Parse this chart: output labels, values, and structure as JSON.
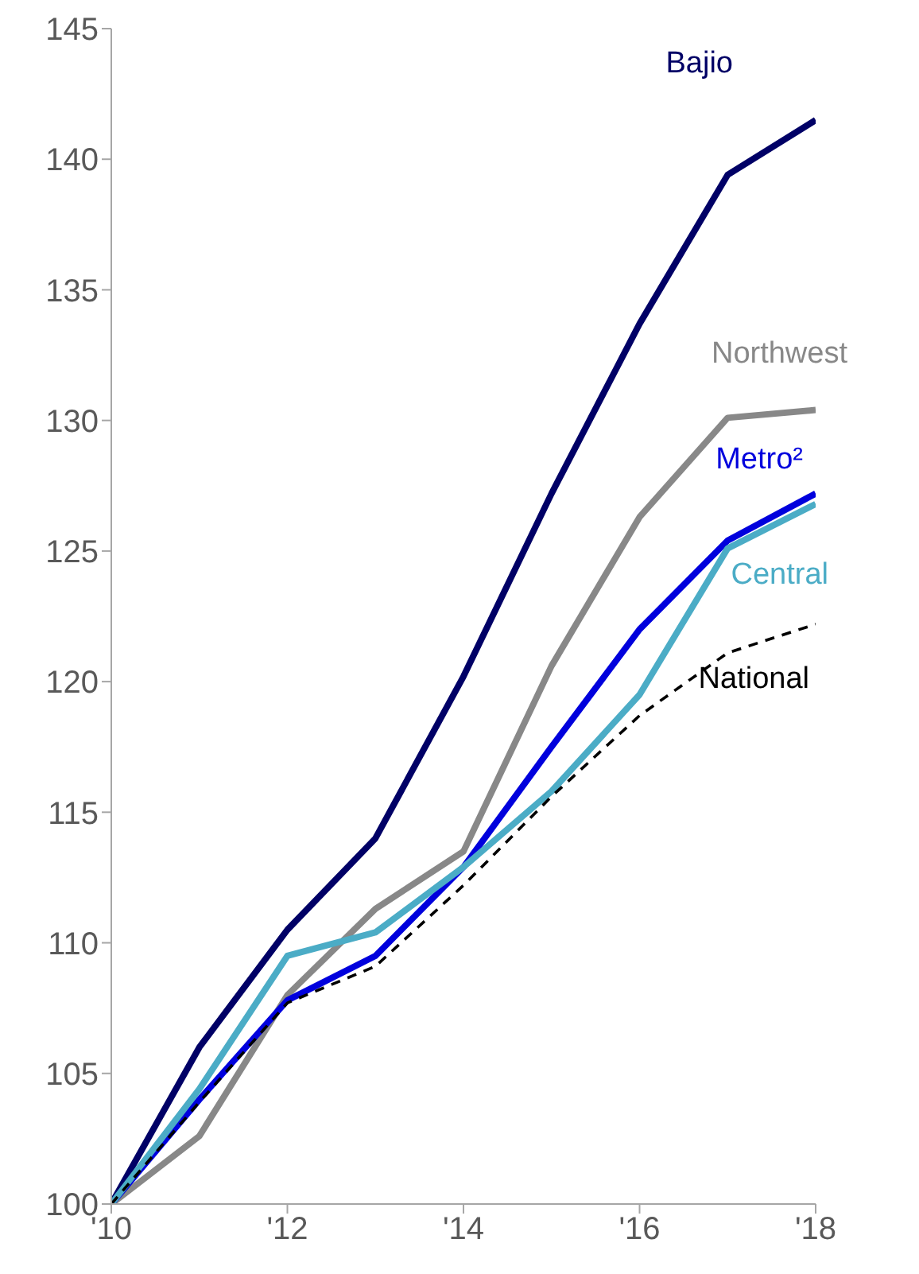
{
  "chart_data": {
    "type": "line",
    "x": [
      2010,
      2011,
      2012,
      2013,
      2014,
      2015,
      2016,
      2017,
      2018
    ],
    "xlim": [
      2010,
      2018
    ],
    "xticks": [
      {
        "value": 2010,
        "label": "'10"
      },
      {
        "value": 2012,
        "label": "'12"
      },
      {
        "value": 2014,
        "label": "'14"
      },
      {
        "value": 2016,
        "label": "'16"
      },
      {
        "value": 2018,
        "label": "'18"
      }
    ],
    "ylim": [
      100,
      145
    ],
    "yticks": [
      100,
      105,
      110,
      115,
      120,
      125,
      130,
      135,
      140,
      145
    ],
    "grid": false,
    "marker": "none",
    "series": [
      {
        "name": "Bajio",
        "color": "#000066",
        "values": [
          100,
          106.0,
          110.5,
          114.0,
          120.2,
          127.2,
          133.7,
          139.4,
          141.5
        ]
      },
      {
        "name": "Northwest",
        "color": "#888888",
        "values": [
          100,
          102.6,
          108.0,
          111.3,
          113.5,
          120.6,
          126.3,
          130.1,
          130.4
        ]
      },
      {
        "name": "Metro²",
        "color": "#0000dd",
        "values": [
          100,
          104.0,
          107.8,
          109.5,
          112.9,
          117.5,
          122.0,
          125.4,
          127.2
        ]
      },
      {
        "name": "Central",
        "color": "#4bacc6",
        "values": [
          100,
          104.4,
          109.5,
          110.4,
          112.9,
          115.8,
          119.5,
          125.1,
          126.8
        ]
      },
      {
        "name": "National",
        "color": "#000000",
        "line_style": "dashed",
        "values": [
          100,
          103.9,
          107.7,
          109.1,
          112.2,
          115.6,
          118.7,
          121.1,
          122.2
        ]
      }
    ]
  }
}
